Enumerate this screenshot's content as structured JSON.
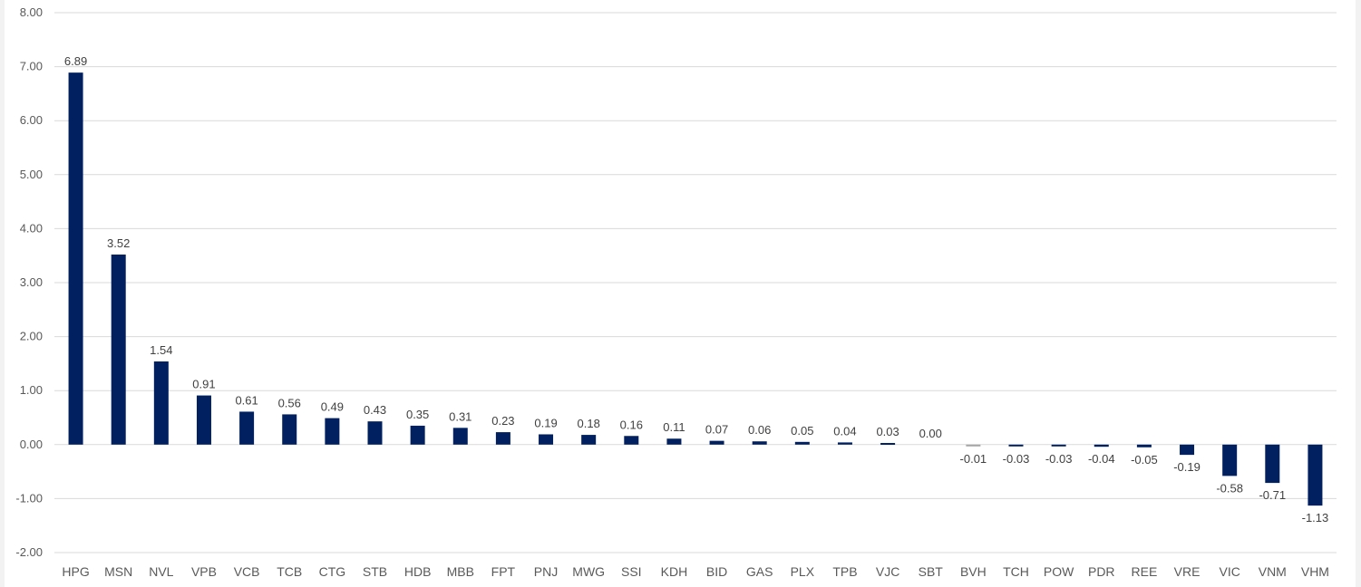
{
  "chart_data": {
    "type": "bar",
    "title": "",
    "xlabel": "",
    "ylabel": "",
    "ylim": [
      -2,
      8
    ],
    "yticks": [
      "8.00",
      "7.00",
      "6.00",
      "5.00",
      "4.00",
      "3.00",
      "2.00",
      "1.00",
      "0.00",
      "-1.00",
      "-2.00"
    ],
    "ytick_values": [
      8,
      7,
      6,
      5,
      4,
      3,
      2,
      1,
      0,
      -1,
      -2
    ],
    "grid": true,
    "legend": "none",
    "bar_color": "#002060",
    "categories": [
      "HPG",
      "MSN",
      "NVL",
      "VPB",
      "VCB",
      "TCB",
      "CTG",
      "STB",
      "HDB",
      "MBB",
      "FPT",
      "PNJ",
      "MWG",
      "SSI",
      "KDH",
      "BID",
      "GAS",
      "PLX",
      "TPB",
      "VJC",
      "SBT",
      "BVH",
      "TCH",
      "POW",
      "PDR",
      "REE",
      "VRE",
      "VIC",
      "VNM",
      "VHM"
    ],
    "values": [
      6.89,
      3.52,
      1.54,
      0.91,
      0.61,
      0.56,
      0.49,
      0.43,
      0.35,
      0.31,
      0.23,
      0.19,
      0.18,
      0.16,
      0.11,
      0.07,
      0.06,
      0.05,
      0.04,
      0.03,
      0.0,
      -0.01,
      -0.03,
      -0.03,
      -0.04,
      -0.05,
      -0.19,
      -0.58,
      -0.71,
      -1.13
    ],
    "data_labels": [
      "6.89",
      "3.52",
      "1.54",
      "0.91",
      "0.61",
      "0.56",
      "0.49",
      "0.43",
      "0.35",
      "0.31",
      "0.23",
      "0.19",
      "0.18",
      "0.16",
      "0.11",
      "0.07",
      "0.06",
      "0.05",
      "0.04",
      "0.03",
      "0.00",
      "-0.01",
      "-0.03",
      "-0.03",
      "-0.04",
      "-0.05",
      "-0.19",
      "-0.58",
      "-0.71",
      "-1.13"
    ]
  }
}
